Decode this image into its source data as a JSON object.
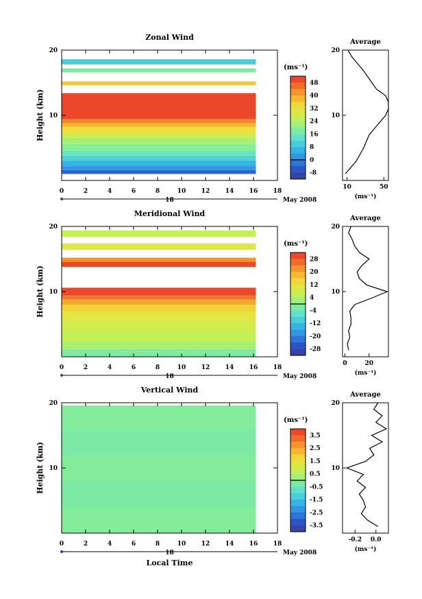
{
  "chart_data": [
    {
      "type": "heatmap",
      "title": "Zonal Wind",
      "xlabel": "",
      "ylabel": "Height (km)",
      "xlim": [
        0,
        18
      ],
      "ylim": [
        0,
        20
      ],
      "x_ticks": [
        0,
        2,
        4,
        6,
        8,
        10,
        12,
        14,
        16,
        18
      ],
      "y_ticks": [
        10,
        20
      ],
      "date_axis": {
        "tick_label": "18",
        "tick_at": 9,
        "end_label": "May 2008"
      },
      "data_extent_x": [
        0,
        16.2
      ],
      "colorbar": {
        "label": "(ms⁻¹)",
        "tick_labels": [
          "48",
          "40",
          "32",
          "24",
          "16",
          "8",
          "0",
          "-8"
        ],
        "range": [
          -12,
          52
        ],
        "zero_line": 0
      },
      "bands": [
        {
          "y": [
            1.0,
            1.6
          ],
          "value": -4
        },
        {
          "y": [
            1.6,
            2.2
          ],
          "value": 2
        },
        {
          "y": [
            2.2,
            3.0
          ],
          "value": 6
        },
        {
          "y": [
            3.0,
            3.8
          ],
          "value": 11
        },
        {
          "y": [
            3.8,
            4.6
          ],
          "value": 15
        },
        {
          "y": [
            4.6,
            5.6
          ],
          "value": 19
        },
        {
          "y": [
            5.6,
            6.6
          ],
          "value": 23
        },
        {
          "y": [
            6.6,
            7.4
          ],
          "value": 28
        },
        {
          "y": [
            7.4,
            8.2
          ],
          "value": 33
        },
        {
          "y": [
            8.2,
            8.8
          ],
          "value": 38
        },
        {
          "y": [
            8.8,
            9.4
          ],
          "value": 43
        },
        {
          "y": [
            9.4,
            13.4
          ],
          "value": 50
        },
        {
          "y": [
            14.6,
            15.2
          ],
          "value": 36
        },
        {
          "y": [
            16.6,
            17.2
          ],
          "value": 18
        },
        {
          "y": [
            17.8,
            18.6
          ],
          "value": 10
        }
      ],
      "average_profile": {
        "title": "Average",
        "xlabel": "(ms⁻¹)",
        "x_tick_labels": [
          "10",
          "50"
        ],
        "x_ticks": [
          10,
          50
        ],
        "xlim": [
          5,
          55
        ],
        "y_tick_labels": [
          "10",
          "20"
        ],
        "y": [
          1,
          2,
          3,
          4,
          5,
          6,
          7,
          8,
          9,
          10,
          11,
          12,
          13,
          14,
          15,
          16,
          17,
          18,
          19,
          20
        ],
        "x": [
          8,
          14,
          20,
          24,
          28,
          31,
          34,
          40,
          46,
          52,
          55,
          55,
          52,
          42,
          37,
          32,
          27,
          21,
          15,
          11
        ]
      }
    },
    {
      "type": "heatmap",
      "title": "Meridional Wind",
      "xlabel": "",
      "ylabel": "Height (km)",
      "xlim": [
        0,
        18
      ],
      "ylim": [
        0,
        20
      ],
      "x_ticks": [
        0,
        2,
        4,
        6,
        8,
        10,
        12,
        14,
        16,
        18
      ],
      "y_ticks": [
        10,
        20
      ],
      "date_axis": {
        "tick_label": "18",
        "tick_at": 9,
        "end_label": "May 2008"
      },
      "data_extent_x": [
        0,
        16.2
      ],
      "colorbar": {
        "label": "(ms⁻¹)",
        "tick_labels": [
          "28",
          "20",
          "12",
          "4",
          "-4",
          "-12",
          "-20",
          "-28"
        ],
        "range": [
          -32,
          32
        ],
        "zero_line": 0
      },
      "bands": [
        {
          "y": [
            0.0,
            1.2
          ],
          "value": -2
        },
        {
          "y": [
            1.2,
            2.4
          ],
          "value": 3
        },
        {
          "y": [
            2.4,
            4.0
          ],
          "value": 6
        },
        {
          "y": [
            4.0,
            5.6
          ],
          "value": 8
        },
        {
          "y": [
            5.6,
            7.0
          ],
          "value": 11
        },
        {
          "y": [
            7.0,
            8.0
          ],
          "value": 15
        },
        {
          "y": [
            8.0,
            8.8
          ],
          "value": 20
        },
        {
          "y": [
            8.8,
            9.4
          ],
          "value": 25
        },
        {
          "y": [
            9.4,
            10.6
          ],
          "value": 30
        },
        {
          "y": [
            13.8,
            14.6
          ],
          "value": 30
        },
        {
          "y": [
            14.6,
            15.2
          ],
          "value": 22
        },
        {
          "y": [
            16.4,
            17.4
          ],
          "value": 10
        },
        {
          "y": [
            18.4,
            19.4
          ],
          "value": 6
        }
      ],
      "average_profile": {
        "title": "Average",
        "xlabel": "(ms⁻¹)",
        "x_tick_labels": [
          "0",
          "20"
        ],
        "x_ticks": [
          0,
          20
        ],
        "xlim": [
          -2,
          36
        ],
        "y_tick_labels": [
          "10",
          "20"
        ],
        "y": [
          1,
          2,
          3,
          4,
          5,
          6,
          7,
          8,
          9,
          10,
          11,
          12,
          13,
          14,
          15,
          16,
          17,
          18,
          19,
          20
        ],
        "x": [
          3,
          2,
          4,
          3,
          5,
          5,
          4,
          8,
          22,
          35,
          18,
          12,
          10,
          14,
          20,
          12,
          8,
          6,
          3,
          5
        ]
      }
    },
    {
      "type": "heatmap",
      "title": "Vertical Wind",
      "xlabel": "Local Time",
      "ylabel": "Height (km)",
      "xlim": [
        0,
        18
      ],
      "ylim": [
        0,
        20
      ],
      "x_ticks": [
        0,
        2,
        4,
        6,
        8,
        10,
        12,
        14,
        16,
        18
      ],
      "y_ticks": [
        10,
        20
      ],
      "date_axis": {
        "tick_label": "18",
        "tick_at": 9,
        "end_label": "May 2008"
      },
      "data_extent_x": [
        0,
        16.2
      ],
      "colorbar": {
        "label": "(ms⁻¹)",
        "tick_labels": [
          "3.5",
          "2.5",
          "1.5",
          "0.5",
          "-0.5",
          "-1.5",
          "-2.5",
          "-3.5"
        ],
        "range": [
          -4,
          4
        ],
        "zero_line": 0
      },
      "bands": [
        {
          "y": [
            0.0,
            4.0
          ],
          "value": -0.2
        },
        {
          "y": [
            4.0,
            8.0
          ],
          "value": -0.3
        },
        {
          "y": [
            8.0,
            12.0
          ],
          "value": -0.2
        },
        {
          "y": [
            12.0,
            16.0
          ],
          "value": -0.3
        },
        {
          "y": [
            16.0,
            19.6
          ],
          "value": -0.2
        }
      ],
      "average_profile": {
        "title": "Average",
        "xlabel": "(ms⁻¹)",
        "x_tick_labels": [
          "-0.2",
          "0.0"
        ],
        "x_ticks": [
          -0.2,
          0.0
        ],
        "xlim": [
          -0.32,
          0.12
        ],
        "y_tick_labels": [
          "10",
          "20"
        ],
        "y": [
          1,
          2,
          3,
          4,
          5,
          6,
          7,
          8,
          9,
          10,
          11,
          12,
          13,
          14,
          15,
          16,
          17,
          18,
          19,
          20
        ],
        "x": [
          0.02,
          -0.08,
          -0.14,
          -0.1,
          -0.12,
          -0.16,
          -0.1,
          -0.18,
          -0.12,
          -0.28,
          -0.1,
          -0.02,
          -0.06,
          0.06,
          -0.04,
          0.1,
          0.0,
          0.06,
          -0.02,
          0.02
        ]
      }
    }
  ]
}
